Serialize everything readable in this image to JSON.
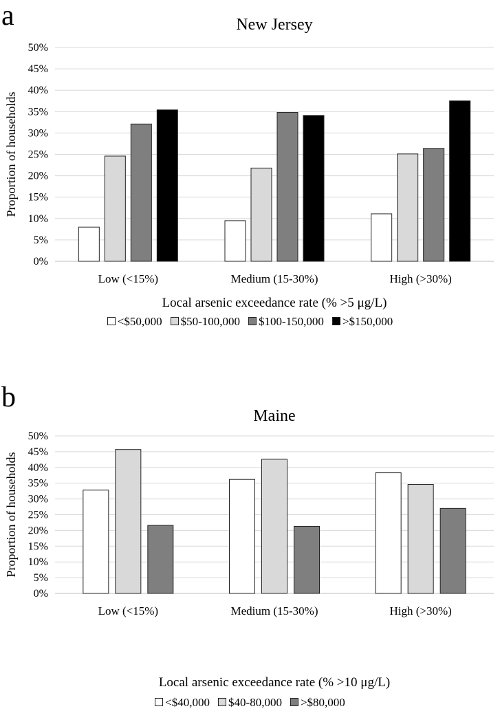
{
  "chart_data": [
    {
      "type": "bar",
      "panel_label": "a",
      "title": "New Jersey",
      "xlabel": "Local arsenic exceedance rate (% >5 μg/L)",
      "ylabel": "Proportion of households",
      "ylim": [
        0,
        50
      ],
      "yticks": [
        "0%",
        "5%",
        "10%",
        "15%",
        "20%",
        "25%",
        "30%",
        "35%",
        "40%",
        "45%",
        "50%"
      ],
      "grid": true,
      "legend_position": "bottom",
      "categories": [
        "Low (<15%)",
        "Medium (15-30%)",
        "High (>30%)"
      ],
      "series": [
        {
          "name": "<$50,000",
          "color": "#ffffff",
          "values": [
            8.0,
            9.5,
            11.1
          ]
        },
        {
          "name": "$50-100,000",
          "color": "#d9d9d9",
          "values": [
            24.6,
            21.8,
            25.1
          ]
        },
        {
          "name": "$100-150,000",
          "color": "#7f7f7f",
          "values": [
            32.1,
            34.8,
            26.4
          ]
        },
        {
          "name": ">$150,000",
          "color": "#000000",
          "values": [
            35.4,
            34.1,
            37.5
          ]
        }
      ]
    },
    {
      "type": "bar",
      "panel_label": "b",
      "title": "Maine",
      "xlabel": "Local arsenic exceedance rate (% >10 μg/L)",
      "ylabel": "Proportion of households",
      "ylim": [
        0,
        50
      ],
      "yticks": [
        "0%",
        "5%",
        "10%",
        "15%",
        "20%",
        "25%",
        "30%",
        "35%",
        "40%",
        "45%",
        "50%"
      ],
      "grid": true,
      "legend_position": "bottom",
      "categories": [
        "Low (<15%)",
        "Medium (15-30%)",
        "High (>30%)"
      ],
      "series": [
        {
          "name": "<$40,000",
          "color": "#ffffff",
          "values": [
            32.8,
            36.2,
            38.3
          ]
        },
        {
          "name": "$40-80,000",
          "color": "#d9d9d9",
          "values": [
            45.7,
            42.6,
            34.6
          ]
        },
        {
          "name": ">$80,000",
          "color": "#7f7f7f",
          "values": [
            21.6,
            21.3,
            27.0
          ]
        }
      ]
    }
  ]
}
